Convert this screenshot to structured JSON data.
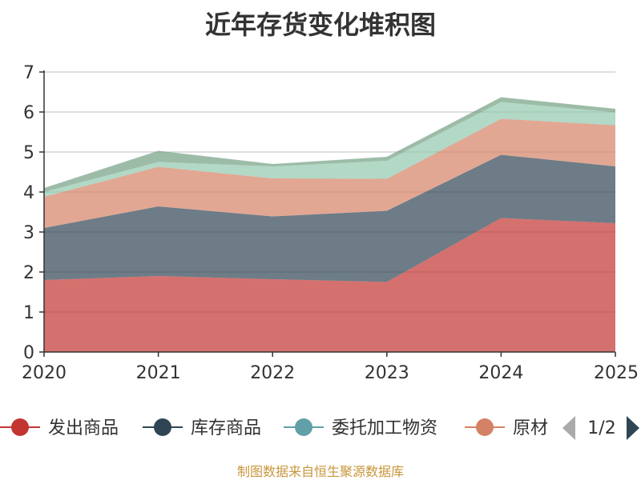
{
  "chart_data": {
    "type": "area",
    "stacked": true,
    "title": "近年存货变化堆积图",
    "x": [
      "2020",
      "2021",
      "2022",
      "2023",
      "2024",
      "2025"
    ],
    "ylim": [
      0,
      7
    ],
    "yticks": [
      "0",
      "1",
      "2",
      "3",
      "4",
      "5",
      "6",
      "7"
    ],
    "grid": true,
    "legend_position": "bottom",
    "series": [
      {
        "name": "发出商品",
        "values": [
          1.8,
          1.9,
          1.82,
          1.75,
          3.35,
          3.22
        ],
        "color": "#c23531",
        "legend_color": "#c23531"
      },
      {
        "name": "库存商品",
        "values": [
          1.3,
          1.74,
          1.57,
          1.78,
          1.58,
          1.42
        ],
        "color": "#2f4554",
        "legend_color": "#2f4554"
      },
      {
        "name": "委托加工物资",
        "values": [
          0.0,
          0.0,
          0.0,
          0.0,
          0.0,
          0.0
        ],
        "color": "#61a0a8",
        "legend_color": "#61a0a8"
      },
      {
        "name": "原材料",
        "values": [
          0.78,
          0.99,
          0.95,
          0.8,
          0.9,
          1.03
        ],
        "color": "#d48265",
        "legend_color": "#d48265"
      },
      {
        "name": "",
        "values": [
          0.12,
          0.12,
          0.3,
          0.45,
          0.42,
          0.32
        ],
        "color": "#91c7ae"
      },
      {
        "name": "",
        "values": [
          0.1,
          0.28,
          0.06,
          0.1,
          0.12,
          0.09
        ],
        "color": "#749f83"
      }
    ]
  },
  "legend": {
    "items": [
      "发出商品",
      "库存商品",
      "委托加工物资",
      "原材料"
    ],
    "page_indicator": "1/2",
    "prev_icon": "triangle-left-icon",
    "next_icon": "triangle-right-icon"
  },
  "source_note": "制图数据来自恒生聚源数据库"
}
